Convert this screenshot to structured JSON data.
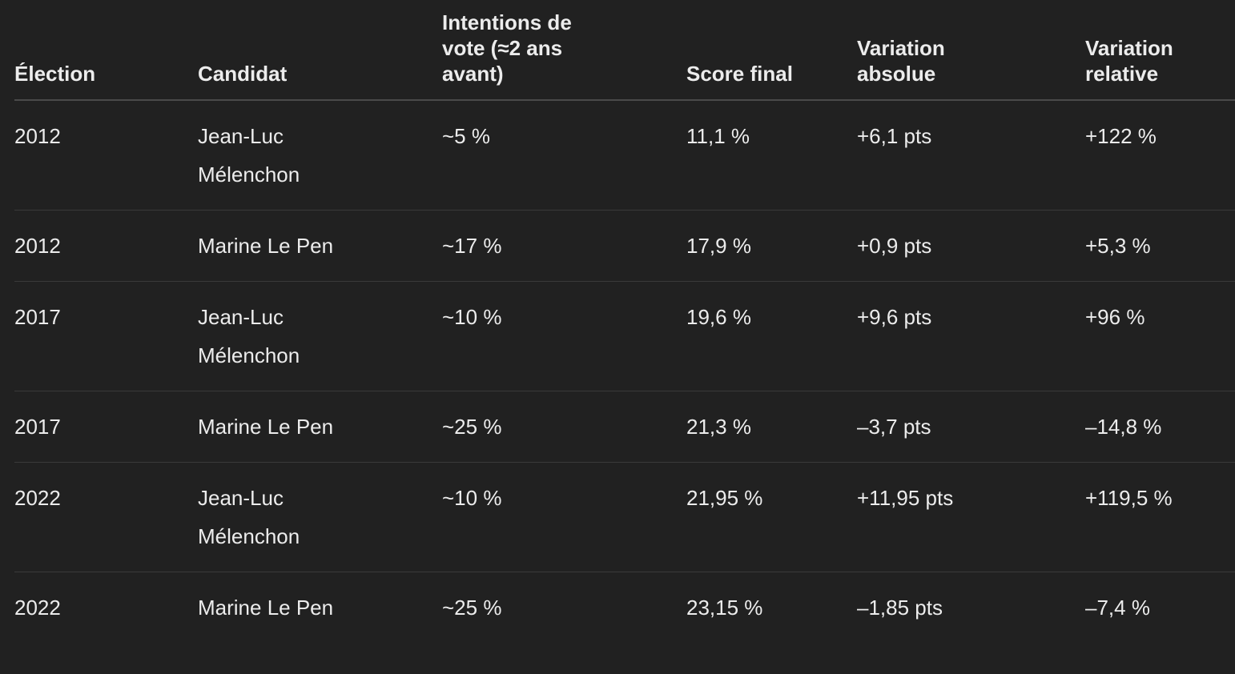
{
  "table": {
    "headers": [
      "Élection",
      "Candidat",
      "Intentions de vote (≈2 ans avant)",
      "Score final",
      "Variation absolue",
      "Variation relative"
    ],
    "rows": [
      [
        "2012",
        "Jean-Luc Mélenchon",
        "~5 %",
        "11,1 %",
        "+6,1 pts",
        "+122 %"
      ],
      [
        "2012",
        "Marine Le Pen",
        "~17 %",
        "17,9 %",
        "+0,9 pts",
        "+5,3 %"
      ],
      [
        "2017",
        "Jean-Luc Mélenchon",
        "~10 %",
        "19,6 %",
        "+9,6 pts",
        "+96 %"
      ],
      [
        "2017",
        "Marine Le Pen",
        "~25 %",
        "21,3 %",
        "–3,7 pts",
        "–14,8 %"
      ],
      [
        "2022",
        "Jean-Luc Mélenchon",
        "~10 %",
        "21,95 %",
        "+11,95 pts",
        "+119,5 %"
      ],
      [
        "2022",
        "Marine Le Pen",
        "~25 %",
        "23,15 %",
        "–1,85 pts",
        "–7,4 %"
      ]
    ]
  }
}
